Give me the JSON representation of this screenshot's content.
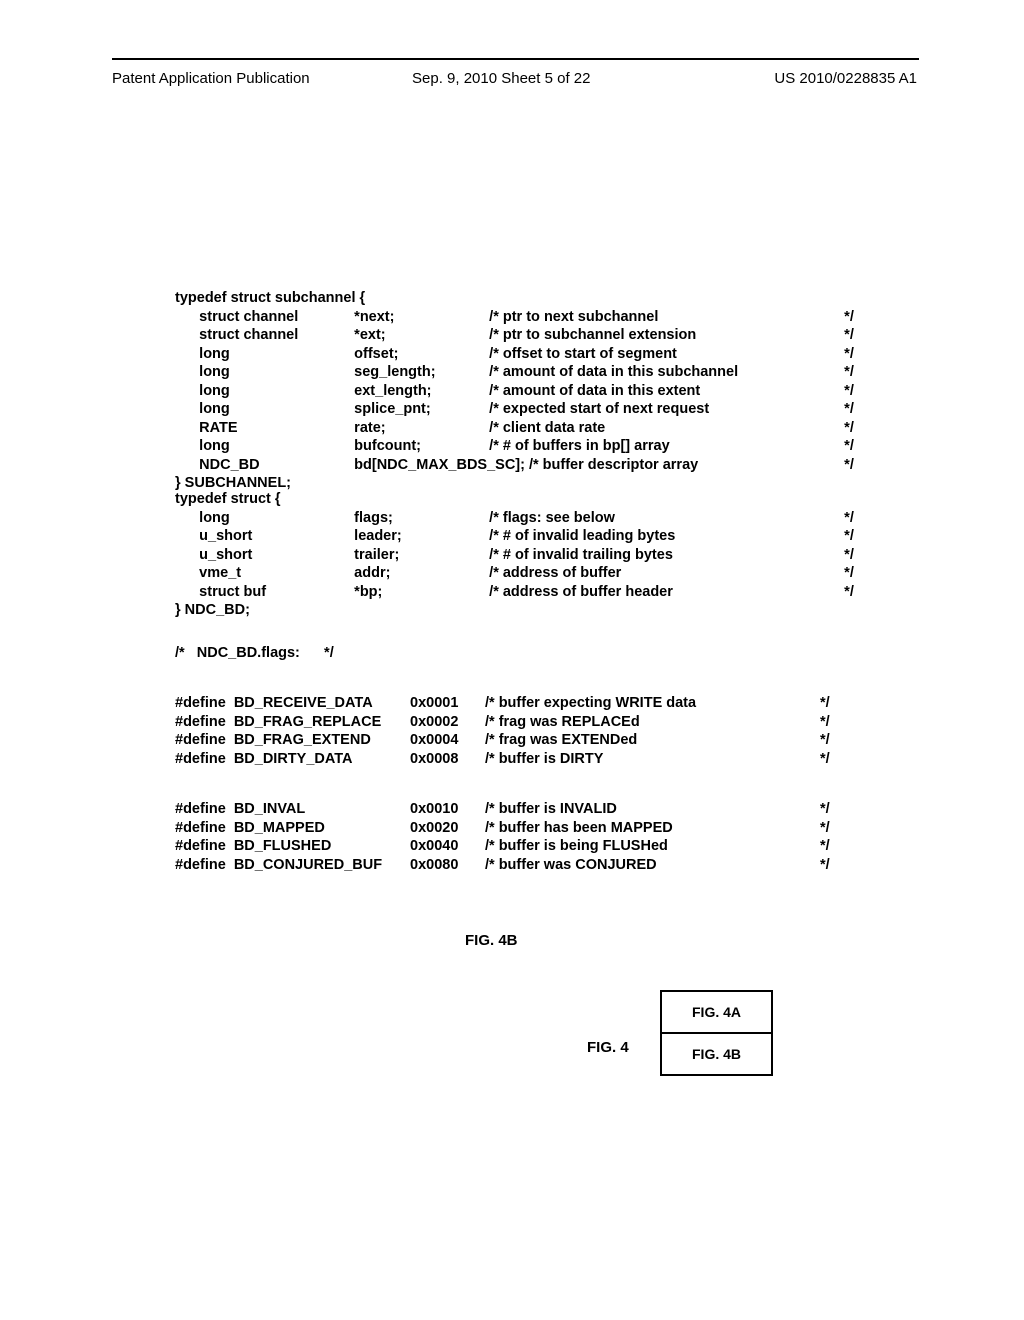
{
  "header": {
    "left": "Patent Application Publication",
    "center": "Sep. 9, 2010  Sheet 5 of 22",
    "right": "US 2010/0228835 A1"
  },
  "struct1": {
    "decl": "typedef struct subchannel {",
    "rows": [
      {
        "type": "struct channel",
        "name": "*next;",
        "comment": "/* ptr to next subchannel",
        "end": "*/"
      },
      {
        "type": "struct channel",
        "name": "*ext;",
        "comment": "/* ptr to subchannel extension",
        "end": "*/"
      },
      {
        "type": "long",
        "name": "offset;",
        "comment": "/* offset to start of segment",
        "end": "*/"
      },
      {
        "type": "long",
        "name": "seg_length;",
        "comment": "/* amount of data in this subchannel",
        "end": "*/"
      },
      {
        "type": "long",
        "name": "ext_length;",
        "comment": "/* amount of data in this extent",
        "end": "*/"
      },
      {
        "type": "long",
        "name": "splice_pnt;",
        "comment": "/* expected start of next request",
        "end": "*/"
      },
      {
        "type": "RATE",
        "name": "rate;",
        "comment": "/* client data rate",
        "end": "*/"
      },
      {
        "type": "long",
        "name": "bufcount;",
        "comment": "/* # of buffers in bp[] array",
        "end": "*/"
      },
      {
        "type": "NDC_BD",
        "name": "bd[NDC_MAX_BDS_SC]; /* buffer descriptor array",
        "comment": "",
        "end": "*/"
      }
    ],
    "close": "} SUBCHANNEL;"
  },
  "struct2": {
    "decl": "typedef struct {",
    "rows": [
      {
        "type": "long",
        "name": "flags;",
        "comment": "/* flags: see below",
        "end": "*/"
      },
      {
        "type": "u_short",
        "name": "leader;",
        "comment": "/* # of invalid leading bytes",
        "end": "*/"
      },
      {
        "type": "u_short",
        "name": "trailer;",
        "comment": "/* # of invalid trailing bytes",
        "end": "*/"
      },
      {
        "type": "vme_t",
        "name": "addr;",
        "comment": "/* address of buffer",
        "end": "*/"
      },
      {
        "type": "struct buf",
        "name": "*bp;",
        "comment": "/* address of buffer header",
        "end": "*/"
      }
    ],
    "close": "} NDC_BD;"
  },
  "flags_comment": "/*   NDC_BD.flags:      */",
  "defines1": [
    {
      "def": "#define  BD_RECEIVE_DATA",
      "val": "0x0001",
      "comment": "/* buffer expecting WRITE data",
      "end": "*/"
    },
    {
      "def": "#define  BD_FRAG_REPLACE",
      "val": "0x0002",
      "comment": "/* frag was REPLACEd",
      "end": "*/"
    },
    {
      "def": "#define  BD_FRAG_EXTEND",
      "val": "0x0004",
      "comment": "/* frag was EXTENDed",
      "end": "*/"
    },
    {
      "def": "#define  BD_DIRTY_DATA",
      "val": "0x0008",
      "comment": "/* buffer is DIRTY",
      "end": "*/"
    }
  ],
  "defines2": [
    {
      "def": "#define  BD_INVAL",
      "val": "0x0010",
      "comment": "/* buffer is INVALID",
      "end": "*/"
    },
    {
      "def": "#define  BD_MAPPED",
      "val": "0x0020",
      "comment": "/* buffer has been MAPPED",
      "end": "*/"
    },
    {
      "def": "#define  BD_FLUSHED",
      "val": "0x0040",
      "comment": "/* buffer is being FLUSHed",
      "end": "*/"
    },
    {
      "def": "#define  BD_CONJURED_BUF",
      "val": "0x0080",
      "comment": "/* buffer was CONJURED",
      "end": "*/"
    }
  ],
  "figures": {
    "fig4b": "FIG. 4B",
    "fig4": "FIG. 4",
    "cell1": "FIG. 4A",
    "cell2": "FIG. 4B"
  }
}
